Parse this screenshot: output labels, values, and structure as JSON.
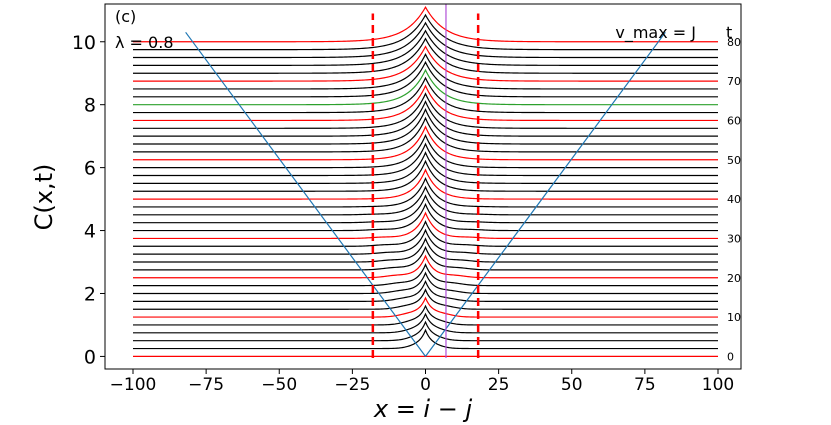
{
  "chart_data": {
    "type": "line",
    "panel_label": "(c)",
    "parameter_label": "λ = 0.8",
    "xlabel": "x = i − j",
    "ylabel": "C(x,t)",
    "velocity_label": "v_max = J",
    "t_axis_title": "t",
    "xlim": [
      -100,
      100
    ],
    "ylim": [
      -0.4,
      11.2
    ],
    "x_ticks": [
      -100,
      -75,
      -50,
      -25,
      0,
      25,
      50,
      75,
      100
    ],
    "y_ticks": [
      0,
      2,
      4,
      6,
      8,
      10
    ],
    "t_ticks": [
      0,
      10,
      20,
      30,
      40,
      50,
      60,
      70,
      80
    ],
    "t_values": [
      0,
      2,
      4,
      6,
      8,
      10,
      12,
      14,
      16,
      18,
      20,
      22,
      24,
      26,
      28,
      30,
      32,
      34,
      36,
      38,
      40,
      42,
      44,
      46,
      48,
      50,
      52,
      54,
      56,
      58,
      60,
      62,
      64,
      66,
      68,
      70,
      72,
      74,
      76,
      78,
      80
    ],
    "baseline_step": 0.25,
    "highlight_every": 5,
    "highlight_color": "#ff0000",
    "normal_color": "#000000",
    "special_curve": {
      "t": 64,
      "color": "#2ca02c"
    },
    "light_cone": {
      "color": "#1f77b4",
      "apex": [
        0,
        0
      ],
      "x_range": [
        -82,
        82
      ]
    },
    "dashed_lines": {
      "x": [
        -18,
        18
      ],
      "y_range": [
        -0.05,
        10.9
      ],
      "color": "#ff0000"
    },
    "vertical_marker": {
      "x": 7,
      "y_range": [
        -0.05,
        11.2
      ],
      "color": "#b04fd8"
    },
    "grid": false
  }
}
